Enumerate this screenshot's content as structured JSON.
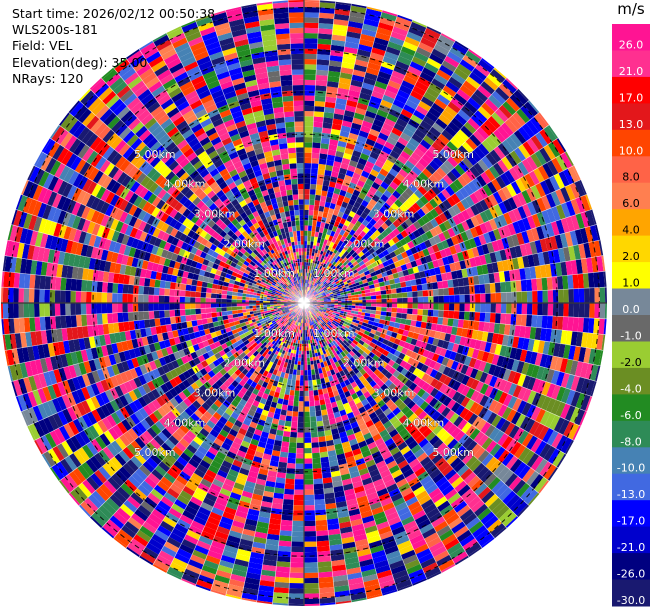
{
  "header": {
    "start_time": "Start time: 2026/02/12 00:50:38",
    "instrument": "WLS200s-181",
    "field": "Field: VEL",
    "elevation": "Elevation(deg): 35.00",
    "nrays": "NRays: 120"
  },
  "chart_data": {
    "type": "heatmap",
    "projection": "polar-ppi",
    "field": "VEL",
    "unit": "m/s",
    "n_rays": 120,
    "range_rings_km": [
      1.0,
      2.0,
      3.0,
      4.0,
      5.0
    ],
    "ring_label_format": "{v}0km",
    "ring_labels": [
      "1.00km",
      "2.00km",
      "3.00km",
      "4.00km",
      "5.00km"
    ],
    "max_range_km": 7.1,
    "colorbar": {
      "title": "m/s",
      "ticks": [
        "26.0",
        "21.0",
        "17.0",
        "13.0",
        "10.0",
        "8.0",
        "6.0",
        "4.0",
        "2.0",
        "1.0",
        "0.0",
        "-1.0",
        "-2.0",
        "-4.0",
        "-6.0",
        "-8.0",
        "-10.0",
        "-13.0",
        "-17.0",
        "-21.0",
        "-26.0",
        "-30.0"
      ],
      "colors": [
        "#FF1493",
        "#FF3090",
        "#FF0000",
        "#E3171B",
        "#FF4500",
        "#FF6347",
        "#FF7F50",
        "#FFA500",
        "#FFD700",
        "#FFFF00",
        "#778899",
        "#696969",
        "#9ACD32",
        "#6B8E23",
        "#228B22",
        "#2E8B57",
        "#4682B4",
        "#4169E1",
        "#0000FF",
        "#0000CD",
        "#000080",
        "#191970"
      ]
    },
    "palette_weights": [
      0.1,
      0.09,
      0.05,
      0.03,
      0.05,
      0.05,
      0.03,
      0.03,
      0.015,
      0.02,
      0.02,
      0.02,
      0.02,
      0.03,
      0.04,
      0.04,
      0.04,
      0.05,
      0.07,
      0.06,
      0.1,
      0.12
    ]
  }
}
